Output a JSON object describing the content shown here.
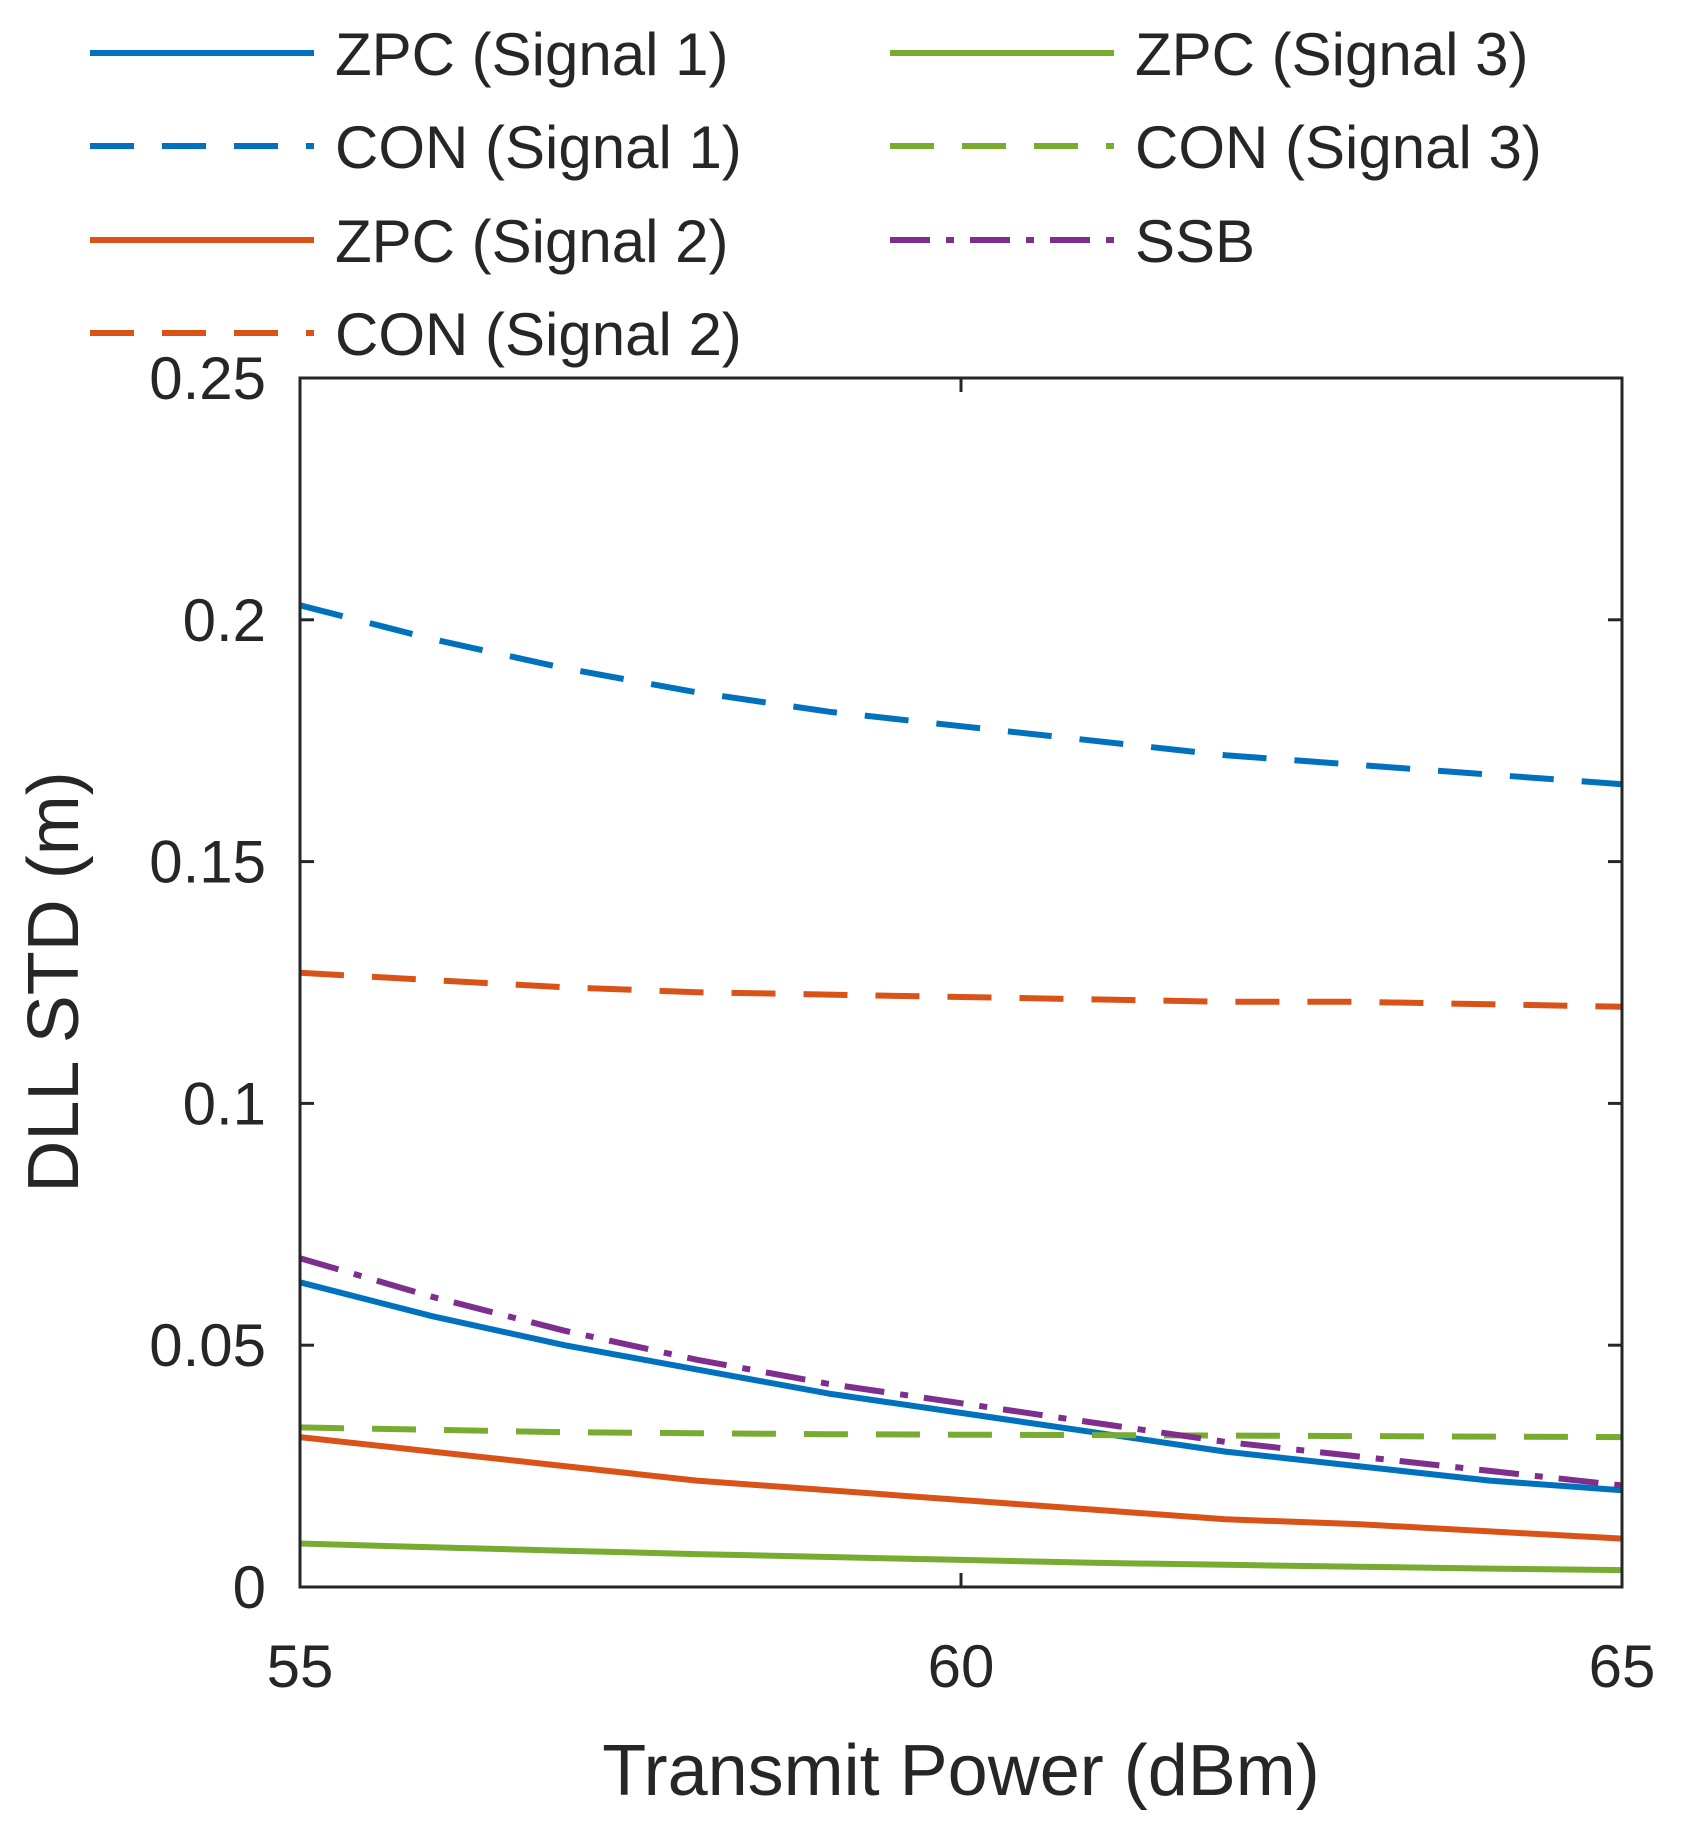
{
  "chart_data": {
    "type": "line",
    "title": "",
    "xlabel": "Transmit Power (dBm)",
    "ylabel": "DLL STD (m)",
    "xlim": [
      55,
      65
    ],
    "ylim": [
      0,
      0.25
    ],
    "xticks": [
      55,
      60,
      65
    ],
    "xtick_labels": [
      "55",
      "60",
      "65"
    ],
    "yticks": [
      0,
      0.05,
      0.1,
      0.15,
      0.2,
      0.25
    ],
    "ytick_labels": [
      "0",
      "0.05",
      "0.1",
      "0.15",
      "0.2",
      "0.25"
    ],
    "grid": false,
    "legend_position": "top",
    "x": [
      55,
      56,
      57,
      58,
      59,
      60,
      61,
      62,
      63,
      64,
      65
    ],
    "series": [
      {
        "name": "ZPC (Signal 1)",
        "color": "#0072BD",
        "style": "solid",
        "values": [
          0.063,
          0.056,
          0.05,
          0.045,
          0.04,
          0.036,
          0.032,
          0.028,
          0.025,
          0.022,
          0.02
        ]
      },
      {
        "name": "CON (Signal 1)",
        "color": "#0072BD",
        "style": "dashed",
        "values": [
          0.203,
          0.196,
          0.19,
          0.185,
          0.181,
          0.178,
          0.175,
          0.172,
          0.17,
          0.168,
          0.166
        ]
      },
      {
        "name": "ZPC (Signal 2)",
        "color": "#D95319",
        "style": "solid",
        "values": [
          0.031,
          0.028,
          0.025,
          0.022,
          0.02,
          0.018,
          0.016,
          0.014,
          0.013,
          0.0115,
          0.01
        ]
      },
      {
        "name": "CON (Signal 2)",
        "color": "#D95319",
        "style": "dashed",
        "values": [
          0.127,
          0.1255,
          0.124,
          0.123,
          0.1225,
          0.122,
          0.1215,
          0.121,
          0.121,
          0.1205,
          0.12
        ]
      },
      {
        "name": "ZPC (Signal 3)",
        "color": "#77AC30",
        "style": "solid",
        "values": [
          0.009,
          0.0082,
          0.0075,
          0.0068,
          0.0062,
          0.0056,
          0.005,
          0.0046,
          0.0042,
          0.0038,
          0.0035
        ]
      },
      {
        "name": "CON (Signal 3)",
        "color": "#77AC30",
        "style": "dashed",
        "values": [
          0.033,
          0.0325,
          0.032,
          0.0318,
          0.0316,
          0.0315,
          0.0314,
          0.0313,
          0.0312,
          0.0311,
          0.031
        ]
      },
      {
        "name": "SSB",
        "color": "#7E2F8E",
        "style": "dashdot",
        "values": [
          0.068,
          0.06,
          0.053,
          0.047,
          0.042,
          0.038,
          0.034,
          0.03,
          0.027,
          0.024,
          0.021
        ]
      }
    ]
  }
}
